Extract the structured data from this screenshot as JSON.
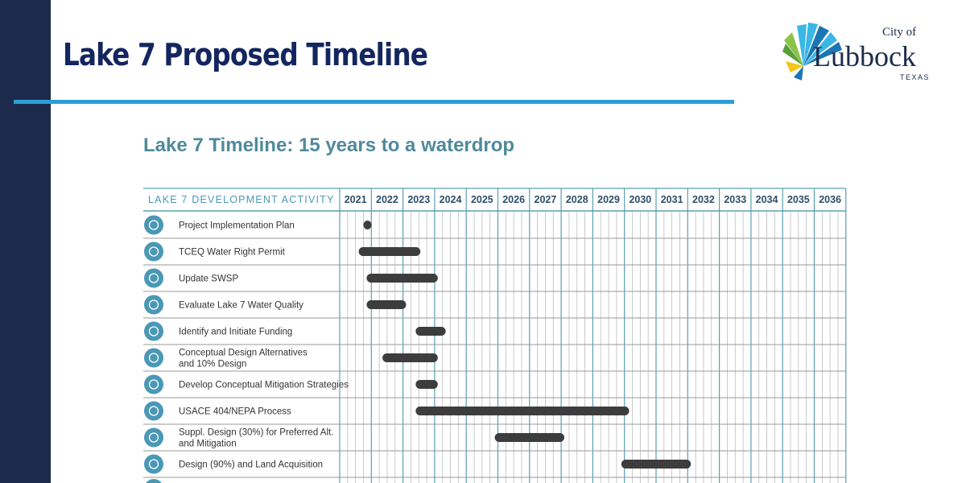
{
  "slide": {
    "title": "Lake 7 Proposed Timeline",
    "logo": {
      "city_of": "City of",
      "city": "Lubbock",
      "state": "TEXAS",
      "colors": [
        "#3ab7e6",
        "#1c76b4",
        "#8bc34a",
        "#f5c518"
      ]
    }
  },
  "chart_data": {
    "type": "gantt",
    "title": "Lake 7 Timeline: 15 years to a waterdrop",
    "activity_header": "LAKE 7 DEVELOPMENT ACTIVITY",
    "years": [
      "2021",
      "2022",
      "2023",
      "2024",
      "2025",
      "2026",
      "2027",
      "2028",
      "2029",
      "2030",
      "2031",
      "2032",
      "2033",
      "2034",
      "2035",
      "2036"
    ],
    "x_range": [
      2021,
      2037
    ],
    "bar_color": "#3d3d3d",
    "icon_color": "#4a98b5",
    "activities": [
      {
        "label": [
          "Project Implementation Plan"
        ],
        "icon": "lightbulb-icon",
        "start": 2021.75,
        "end": 2022.0
      },
      {
        "label": [
          "TCEQ Water Right Permit"
        ],
        "icon": "monitor-icon",
        "start": 2021.6,
        "end": 2023.55
      },
      {
        "label": [
          "Update SWSP"
        ],
        "icon": "cycle-icon",
        "start": 2021.85,
        "end": 2024.1
      },
      {
        "label": [
          "Evaluate Lake 7 Water Quality"
        ],
        "icon": "wrench-icon",
        "start": 2021.85,
        "end": 2023.1
      },
      {
        "label": [
          "Identify and Initiate Funding"
        ],
        "icon": "dollar-icon",
        "start": 2023.4,
        "end": 2024.35
      },
      {
        "label": [
          "Conceptual Design Alternatives",
          "and 10% Design"
        ],
        "icon": "lightbulb-icon",
        "start": 2022.35,
        "end": 2024.1
      },
      {
        "label": [
          "Develop Conceptual Mitigation Strategies"
        ],
        "icon": "target-icon",
        "start": 2023.4,
        "end": 2024.1
      },
      {
        "label": [
          "USACE 404/NEPA Process"
        ],
        "icon": "share-icon",
        "start": 2023.4,
        "end": 2030.15
      },
      {
        "label": [
          "Suppl. Design (30%) for Preferred Alt.",
          "and Mitigation"
        ],
        "icon": "lightbulb-icon",
        "start": 2025.9,
        "end": 2028.1
      },
      {
        "label": [
          "Design (90%) and Land Acquisition"
        ],
        "icon": "lightbulb-icon",
        "start": 2029.9,
        "end": 2032.1
      }
    ]
  }
}
